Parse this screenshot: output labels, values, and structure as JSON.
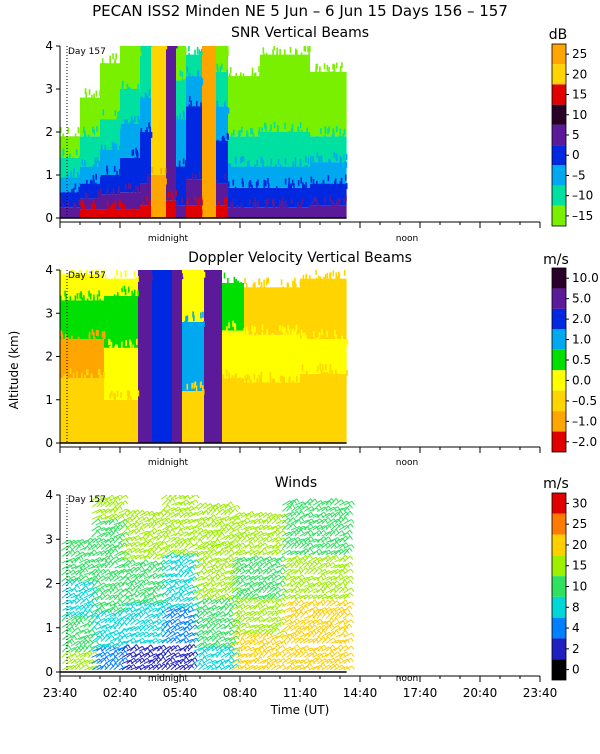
{
  "page_title": "PECAN ISS2 Minden NE   5 Jun –  6 Jun 15 Days 156 – 157",
  "y_axis_label": "Altitude (km)",
  "x_axis_label": "Time (UT)",
  "chart_data": [
    {
      "type": "heatmap",
      "title": "SNR Vertical Beams",
      "unit": "dB",
      "day_label": "Day 157",
      "markers": [
        "midnight",
        "noon"
      ],
      "ylabel": "Altitude (km)",
      "ylim": [
        0,
        4
      ],
      "yticks": [
        "0",
        "1",
        "2",
        "3",
        "4"
      ],
      "data_span_hours": [
        0,
        14.33
      ],
      "colorbar": {
        "labels": [
          "25",
          "20",
          "15",
          "10",
          "5",
          "0",
          "–5",
          "–10",
          "–15"
        ],
        "colors": [
          "#ffa500",
          "#ffd400",
          "#e00000",
          "#280028",
          "#5a1a9a",
          "#0028e0",
          "#00a8f0",
          "#00e0a0",
          "#78f000"
        ]
      },
      "columns": [
        {
          "start": 0.0,
          "end": 1.0,
          "layers": [
            [
              0,
              0.25,
              "#5a1a9a"
            ],
            [
              0.25,
              0.6,
              "#0028e0"
            ],
            [
              0.6,
              0.95,
              "#00a8f0"
            ],
            [
              0.95,
              1.4,
              "#00e0a0"
            ],
            [
              1.4,
              1.9,
              "#78f000"
            ]
          ]
        },
        {
          "start": 1.0,
          "end": 2.0,
          "layers": [
            [
              0,
              0.2,
              "#e00000"
            ],
            [
              0.2,
              0.45,
              "#5a1a9a"
            ],
            [
              0.45,
              0.8,
              "#0028e0"
            ],
            [
              0.8,
              1.2,
              "#00a8f0"
            ],
            [
              1.2,
              1.9,
              "#00e0a0"
            ],
            [
              1.9,
              2.8,
              "#78f000"
            ]
          ]
        },
        {
          "start": 2.0,
          "end": 3.0,
          "layers": [
            [
              0,
              0.2,
              "#e00000"
            ],
            [
              0.2,
              0.55,
              "#5a1a9a"
            ],
            [
              0.55,
              1.0,
              "#0028e0"
            ],
            [
              1.0,
              1.6,
              "#00a8f0"
            ],
            [
              1.6,
              2.3,
              "#00e0a0"
            ],
            [
              2.3,
              3.6,
              "#78f000"
            ]
          ]
        },
        {
          "start": 3.0,
          "end": 4.0,
          "layers": [
            [
              0,
              0.2,
              "#e00000"
            ],
            [
              0.2,
              0.6,
              "#5a1a9a"
            ],
            [
              0.6,
              1.4,
              "#0028e0"
            ],
            [
              1.4,
              2.2,
              "#00a8f0"
            ],
            [
              2.2,
              3.0,
              "#00e0a0"
            ],
            [
              3.0,
              4.0,
              "#78f000"
            ]
          ]
        },
        {
          "start": 4.0,
          "end": 4.55,
          "layers": [
            [
              0,
              0.3,
              "#e00000"
            ],
            [
              0.3,
              0.8,
              "#5a1a9a"
            ],
            [
              0.8,
              2.0,
              "#0028e0"
            ],
            [
              2.0,
              2.8,
              "#00a8f0"
            ],
            [
              2.8,
              4.0,
              "#00e0a0"
            ]
          ]
        },
        {
          "start": 4.55,
          "end": 5.3,
          "layers": [
            [
              0,
              1.0,
              "#ffa500"
            ],
            [
              1.0,
              4.0,
              "#ffd400"
            ]
          ]
        },
        {
          "start": 5.3,
          "end": 5.8,
          "layers": [
            [
              0,
              0.4,
              "#e00000"
            ],
            [
              0.4,
              4.0,
              "#5a1a9a"
            ]
          ]
        },
        {
          "start": 5.8,
          "end": 6.3,
          "layers": [
            [
              0,
              0.3,
              "#5a1a9a"
            ],
            [
              0.3,
              1.2,
              "#0028e0"
            ],
            [
              1.2,
              2.3,
              "#00a8f0"
            ],
            [
              2.3,
              3.2,
              "#00e0a0"
            ],
            [
              3.2,
              4.0,
              "#78f000"
            ]
          ]
        },
        {
          "start": 6.3,
          "end": 7.1,
          "layers": [
            [
              0,
              0.3,
              "#e00000"
            ],
            [
              0.3,
              0.9,
              "#5a1a9a"
            ],
            [
              0.9,
              2.6,
              "#0028e0"
            ],
            [
              2.6,
              3.3,
              "#00a8f0"
            ],
            [
              3.3,
              3.8,
              "#00e0a0"
            ]
          ]
        },
        {
          "start": 7.1,
          "end": 7.8,
          "layers": [
            [
              0,
              4.0,
              "#ffa500"
            ]
          ]
        },
        {
          "start": 7.8,
          "end": 8.4,
          "layers": [
            [
              0,
              0.3,
              "#e00000"
            ],
            [
              0.3,
              0.8,
              "#5a1a9a"
            ],
            [
              0.8,
              1.8,
              "#0028e0"
            ],
            [
              1.8,
              2.6,
              "#00a8f0"
            ],
            [
              2.6,
              3.4,
              "#00e0a0"
            ],
            [
              3.4,
              4.0,
              "#78f000"
            ]
          ]
        },
        {
          "start": 8.4,
          "end": 10.0,
          "layers": [
            [
              0,
              0.25,
              "#5a1a9a"
            ],
            [
              0.25,
              0.7,
              "#0028e0"
            ],
            [
              0.7,
              1.2,
              "#00a8f0"
            ],
            [
              1.2,
              1.9,
              "#00e0a0"
            ],
            [
              1.9,
              3.3,
              "#78f000"
            ]
          ]
        },
        {
          "start": 10.0,
          "end": 12.5,
          "layers": [
            [
              0,
              0.25,
              "#5a1a9a"
            ],
            [
              0.25,
              0.7,
              "#0028e0"
            ],
            [
              0.7,
              1.2,
              "#00a8f0"
            ],
            [
              1.2,
              2.0,
              "#00e0a0"
            ],
            [
              2.0,
              3.8,
              "#78f000"
            ]
          ]
        },
        {
          "start": 12.5,
          "end": 14.33,
          "layers": [
            [
              0,
              0.3,
              "#5a1a9a"
            ],
            [
              0.3,
              0.8,
              "#0028e0"
            ],
            [
              0.8,
              1.3,
              "#00a8f0"
            ],
            [
              1.3,
              1.9,
              "#00e0a0"
            ],
            [
              1.9,
              3.4,
              "#78f000"
            ]
          ]
        }
      ]
    },
    {
      "type": "heatmap",
      "title": "Doppler Velocity Vertical Beams",
      "unit": "m/s",
      "day_label": "Day 157",
      "markers": [
        "midnight",
        "noon"
      ],
      "ylabel": "Altitude (km)",
      "ylim": [
        0,
        4
      ],
      "yticks": [
        "0",
        "1",
        "2",
        "3",
        "4"
      ],
      "data_span_hours": [
        0,
        14.33
      ],
      "colorbar": {
        "labels": [
          "10.0",
          "5.0",
          "2.0",
          "1.0",
          "0.5",
          "0.0",
          "–0.5",
          "–1.0",
          "–2.0"
        ],
        "colors": [
          "#280028",
          "#5a1a9a",
          "#0028e0",
          "#00a8f0",
          "#00e000",
          "#ffff00",
          "#ffd400",
          "#ffa500",
          "#e00000"
        ]
      },
      "columns": [
        {
          "start": 0.0,
          "end": 2.2,
          "layers": [
            [
              0,
              1.5,
              "#ffd400"
            ],
            [
              1.5,
              2.4,
              "#ffa500"
            ],
            [
              2.4,
              3.3,
              "#00e000"
            ],
            [
              3.3,
              3.9,
              "#ffff00"
            ]
          ]
        },
        {
          "start": 2.2,
          "end": 3.9,
          "layers": [
            [
              0,
              1.0,
              "#ffd400"
            ],
            [
              1.0,
              2.2,
              "#ffff00"
            ],
            [
              2.2,
              3.4,
              "#00e000"
            ],
            [
              3.4,
              3.8,
              "#ffff00"
            ]
          ]
        },
        {
          "start": 3.9,
          "end": 4.6,
          "layers": [
            [
              0,
              4.0,
              "#5a1a9a"
            ]
          ]
        },
        {
          "start": 4.6,
          "end": 5.6,
          "layers": [
            [
              0,
              4.0,
              "#0028e0"
            ]
          ]
        },
        {
          "start": 5.6,
          "end": 6.1,
          "layers": [
            [
              0,
              4.0,
              "#5a1a9a"
            ]
          ]
        },
        {
          "start": 6.1,
          "end": 7.2,
          "layers": [
            [
              0,
              1.2,
              "#ffd400"
            ],
            [
              1.2,
              2.8,
              "#00a8f0"
            ],
            [
              2.8,
              4.0,
              "#ffff00"
            ]
          ]
        },
        {
          "start": 7.2,
          "end": 8.1,
          "layers": [
            [
              0,
              4.0,
              "#5a1a9a"
            ]
          ]
        },
        {
          "start": 8.1,
          "end": 9.2,
          "layers": [
            [
              0,
              1.5,
              "#ffd400"
            ],
            [
              1.5,
              2.6,
              "#ffff00"
            ],
            [
              2.6,
              3.7,
              "#00e000"
            ]
          ]
        },
        {
          "start": 9.2,
          "end": 12.0,
          "layers": [
            [
              0,
              1.4,
              "#ffd400"
            ],
            [
              1.4,
              2.5,
              "#ffff00"
            ],
            [
              2.5,
              3.6,
              "#ffd400"
            ]
          ]
        },
        {
          "start": 12.0,
          "end": 14.33,
          "layers": [
            [
              0,
              1.6,
              "#ffd400"
            ],
            [
              1.6,
              2.4,
              "#ffff00"
            ],
            [
              2.4,
              3.8,
              "#ffd400"
            ]
          ]
        }
      ]
    },
    {
      "type": "scatter",
      "title": "Winds",
      "unit": "m/s",
      "day_label": "Day 157",
      "markers": [
        "midnight",
        "noon"
      ],
      "xlabel": "Time (UT)",
      "ylabel": "Altitude (km)",
      "ylim": [
        0,
        4
      ],
      "yticks": [
        "0",
        "1",
        "2",
        "3",
        "4"
      ],
      "xticks": [
        "23:40",
        "02:40",
        "05:40",
        "08:40",
        "11:40",
        "14:40",
        "17:40",
        "20:40",
        "23:40"
      ],
      "data_span_hours": [
        0,
        14.33
      ],
      "colorbar": {
        "labels": [
          "30",
          "25",
          "20",
          "15",
          "10",
          "8",
          "4",
          "2",
          "0"
        ],
        "colors": [
          "#e00000",
          "#ff7a00",
          "#ffd000",
          "#9cf000",
          "#30e060",
          "#00d8d8",
          "#0080ff",
          "#2020c0",
          "#000000"
        ]
      },
      "columns": [
        {
          "start": 0.0,
          "end": 1.5,
          "layers": [
            [
              0,
              0.4,
              3
            ],
            [
              0.4,
              1.2,
              4
            ],
            [
              1.2,
              2.0,
              5
            ],
            [
              2.0,
              3.0,
              4
            ]
          ]
        },
        {
          "start": 1.5,
          "end": 3.0,
          "layers": [
            [
              0,
              0.5,
              6
            ],
            [
              0.5,
              1.3,
              5
            ],
            [
              1.3,
              2.3,
              4
            ],
            [
              2.3,
              3.4,
              4
            ],
            [
              3.4,
              3.9,
              3
            ]
          ]
        },
        {
          "start": 3.0,
          "end": 5.0,
          "layers": [
            [
              0,
              0.6,
              7
            ],
            [
              0.6,
              1.5,
              5
            ],
            [
              1.5,
              2.5,
              4
            ],
            [
              2.5,
              3.6,
              3
            ]
          ]
        },
        {
          "start": 5.0,
          "end": 6.6,
          "layers": [
            [
              0,
              0.6,
              7
            ],
            [
              0.6,
              1.4,
              6
            ],
            [
              1.4,
              2.6,
              5
            ],
            [
              2.6,
              4.0,
              3
            ]
          ]
        },
        {
          "start": 6.6,
          "end": 8.5,
          "layers": [
            [
              0,
              0.5,
              5
            ],
            [
              0.5,
              1.6,
              4
            ],
            [
              1.6,
              2.8,
              3
            ],
            [
              2.8,
              3.8,
              3
            ]
          ]
        },
        {
          "start": 8.5,
          "end": 11.0,
          "layers": [
            [
              0,
              0.8,
              2
            ],
            [
              0.8,
              1.6,
              3
            ],
            [
              1.6,
              2.6,
              4
            ],
            [
              2.6,
              3.6,
              3
            ]
          ]
        },
        {
          "start": 11.0,
          "end": 14.33,
          "layers": [
            [
              0,
              0.6,
              2
            ],
            [
              0.6,
              1.6,
              2
            ],
            [
              1.6,
              2.6,
              3
            ],
            [
              2.6,
              3.8,
              4
            ]
          ]
        }
      ]
    }
  ]
}
